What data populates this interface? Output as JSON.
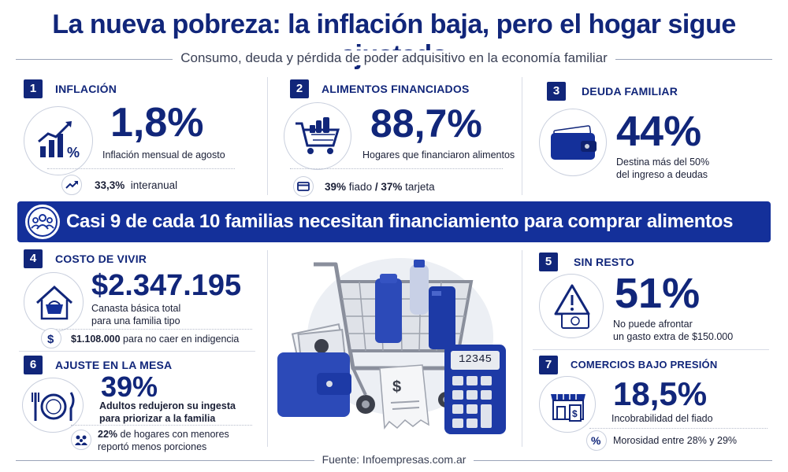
{
  "title": "La nueva pobreza: la inflación baja, pero el hogar sigue ajustado",
  "subtitle": "Consumo, deuda y pérdida de poder adquisitivo en la economía familiar",
  "colors": {
    "primary": "#11267a",
    "banner": "#14309a",
    "text": "#1a1f36"
  },
  "sections": [
    {
      "num": "1",
      "title": "INFLACIÓN",
      "value": "1,8%",
      "desc": "Inflación mensual de agosto",
      "sub_bold": "33,3%",
      "sub_text": "interanual",
      "icon": "chart-percent-icon",
      "sub_icon": "trend-up-icon"
    },
    {
      "num": "2",
      "title": "ALIMENTOS FINANCIADOS",
      "value": "88,7%",
      "desc": "Hogares que financiaron alimentos",
      "sub_bold": "39%",
      "sub_text": "fiado",
      "sub_sep": "/",
      "sub_bold2": "37%",
      "sub_text2": "tarjeta",
      "icon": "shopping-cart-icon",
      "sub_icon": "credit-card-icon"
    },
    {
      "num": "3",
      "title": "DEUDA FAMILIAR",
      "value": "44%",
      "desc_line1": "Destina más del 50%",
      "desc_line2": "del ingreso a deudas",
      "icon": "wallet-icon"
    },
    {
      "num": "4",
      "title": "COSTO DE VIVIR",
      "value": "$2.347.195",
      "desc_line1": "Canasta básica total",
      "desc_line2": "para una familia tipo",
      "sub_bold": "$1.108.000",
      "sub_text": "para no caer en indigencia",
      "icon": "house-basket-icon",
      "sub_icon": "dollar-icon"
    },
    {
      "num": "5",
      "title": "SIN RESTO",
      "value": "51%",
      "desc_line1": "No puede afrontar",
      "desc_line2": "un gasto extra de $150.000",
      "icon": "warning-cash-icon"
    },
    {
      "num": "6",
      "title": "AJUSTE EN LA MESA",
      "value": "39%",
      "desc_line1": "Adultos redujeron su ingesta",
      "desc_line2": "para priorizar a la familia",
      "sub_bold": "22%",
      "sub_text": "de hogares con menores",
      "sub_line2": "reportó menos porciones",
      "icon": "plate-cutlery-icon",
      "sub_icon": "family-icon"
    },
    {
      "num": "7",
      "title": "COMERCIOS BAJO PRESIÓN",
      "value": "18,5%",
      "desc": "Incobrabilidad del fiado",
      "sub_text": "Morosidad entre 28% y 29%",
      "icon": "store-receipt-icon",
      "sub_icon": "percent-icon"
    }
  ],
  "banner": {
    "text": "Casi 9 de cada 10 familias necesitan financiamiento para comprar alimentos",
    "icon": "people-group-icon"
  },
  "illustration": {
    "calculator_display": "12345",
    "icon": "cart-wallet-calculator-illustration"
  },
  "footer": "Fuente: Infoempresas.com.ar"
}
